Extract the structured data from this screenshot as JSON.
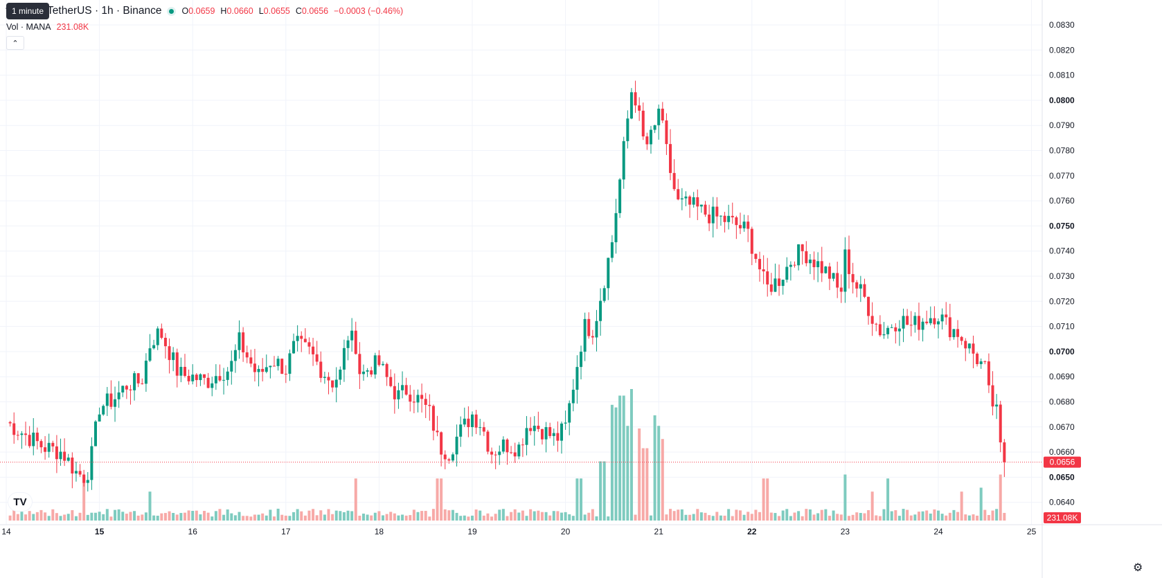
{
  "tooltip": "1 minute",
  "legend": {
    "title": "traland / TetherUS · 1h · Binance",
    "o_label": "O",
    "o": "0.0659",
    "h_label": "H",
    "h": "0.0660",
    "l_label": "L",
    "l": "0.0655",
    "c_label": "C",
    "c": "0.0656",
    "change": "−0.0003 (−0.46%)"
  },
  "volume": {
    "label": "Vol · MANA",
    "value": "231.08K"
  },
  "price_tag": "0.0656",
  "volume_tag": "231.08K",
  "colors": {
    "up": "#089981",
    "down": "#f23645",
    "up_vol": "#7ecbbf",
    "down_vol": "#f7a9a7",
    "grid": "#f0f3fa",
    "text": "#131722"
  },
  "icons": {
    "collapse": "chevron-up-icon",
    "logo": "tradingview-logo-icon",
    "settings": "gear-icon"
  },
  "chart_data": {
    "type": "candlestick",
    "symbol": "MANA/USDT",
    "interval": "1h",
    "ylim": [
      0.0635,
      0.0835
    ],
    "y_ticks": [
      {
        "label": "0.0830",
        "bold": false
      },
      {
        "label": "0.0820",
        "bold": false
      },
      {
        "label": "0.0810",
        "bold": false
      },
      {
        "label": "0.0800",
        "bold": true
      },
      {
        "label": "0.0790",
        "bold": false
      },
      {
        "label": "0.0780",
        "bold": false
      },
      {
        "label": "0.0770",
        "bold": false
      },
      {
        "label": "0.0760",
        "bold": false
      },
      {
        "label": "0.0750",
        "bold": true
      },
      {
        "label": "0.0740",
        "bold": false
      },
      {
        "label": "0.0730",
        "bold": false
      },
      {
        "label": "0.0720",
        "bold": false
      },
      {
        "label": "0.0710",
        "bold": false
      },
      {
        "label": "0.0700",
        "bold": true
      },
      {
        "label": "0.0690",
        "bold": false
      },
      {
        "label": "0.0680",
        "bold": false
      },
      {
        "label": "0.0670",
        "bold": false
      },
      {
        "label": "0.0660",
        "bold": false
      },
      {
        "label": "0.0650",
        "bold": true
      },
      {
        "label": "0.0640",
        "bold": false
      }
    ],
    "x_ticks": [
      {
        "label": "14",
        "day": 14,
        "bold": false
      },
      {
        "label": "15",
        "day": 15,
        "bold": true
      },
      {
        "label": "16",
        "day": 16,
        "bold": false
      },
      {
        "label": "17",
        "day": 17,
        "bold": false
      },
      {
        "label": "18",
        "day": 18,
        "bold": false
      },
      {
        "label": "19",
        "day": 19,
        "bold": false
      },
      {
        "label": "20",
        "day": 20,
        "bold": false
      },
      {
        "label": "21",
        "day": 21,
        "bold": false
      },
      {
        "label": "22",
        "day": 22,
        "bold": true
      },
      {
        "label": "23",
        "day": 23,
        "bold": false
      },
      {
        "label": "24",
        "day": 24,
        "bold": false
      },
      {
        "label": "25",
        "day": 25,
        "bold": false
      }
    ],
    "last_price": 0.0656,
    "anchors": [
      [
        14.0,
        0.0672
      ],
      [
        14.2,
        0.0667
      ],
      [
        14.4,
        0.0662
      ],
      [
        14.6,
        0.066
      ],
      [
        14.75,
        0.0652
      ],
      [
        14.85,
        0.065
      ],
      [
        14.9,
        0.0655
      ],
      [
        15.0,
        0.0678
      ],
      [
        15.15,
        0.0681
      ],
      [
        15.3,
        0.0687
      ],
      [
        15.45,
        0.0688
      ],
      [
        15.55,
        0.0704
      ],
      [
        15.65,
        0.0708
      ],
      [
        15.75,
        0.07
      ],
      [
        15.85,
        0.0691
      ],
      [
        16.0,
        0.069
      ],
      [
        16.15,
        0.0688
      ],
      [
        16.3,
        0.0692
      ],
      [
        16.4,
        0.0693
      ],
      [
        16.5,
        0.0704
      ],
      [
        16.6,
        0.0697
      ],
      [
        16.7,
        0.069
      ],
      [
        16.85,
        0.0697
      ],
      [
        17.0,
        0.0693
      ],
      [
        17.1,
        0.0703
      ],
      [
        17.25,
        0.07
      ],
      [
        17.4,
        0.0692
      ],
      [
        17.5,
        0.0688
      ],
      [
        17.6,
        0.0692
      ],
      [
        17.65,
        0.0707
      ],
      [
        17.75,
        0.0703
      ],
      [
        17.8,
        0.069
      ],
      [
        17.9,
        0.0694
      ],
      [
        18.0,
        0.0695
      ],
      [
        18.1,
        0.0688
      ],
      [
        18.2,
        0.0682
      ],
      [
        18.3,
        0.0685
      ],
      [
        18.45,
        0.068
      ],
      [
        18.55,
        0.0675
      ],
      [
        18.65,
        0.0662
      ],
      [
        18.75,
        0.066
      ],
      [
        18.85,
        0.0667
      ],
      [
        19.0,
        0.0675
      ],
      [
        19.1,
        0.0671
      ],
      [
        19.2,
        0.066
      ],
      [
        19.35,
        0.0663
      ],
      [
        19.5,
        0.0662
      ],
      [
        19.6,
        0.0672
      ],
      [
        19.75,
        0.0669
      ],
      [
        19.9,
        0.0665
      ],
      [
        20.0,
        0.067
      ],
      [
        20.1,
        0.069
      ],
      [
        20.2,
        0.071
      ],
      [
        20.3,
        0.0709
      ],
      [
        20.4,
        0.0726
      ],
      [
        20.5,
        0.0744
      ],
      [
        20.6,
        0.0773
      ],
      [
        20.65,
        0.0788
      ],
      [
        20.72,
        0.0807
      ],
      [
        20.78,
        0.0795
      ],
      [
        20.85,
        0.0781
      ],
      [
        20.95,
        0.0787
      ],
      [
        21.0,
        0.0797
      ],
      [
        21.1,
        0.0776
      ],
      [
        21.2,
        0.0759
      ],
      [
        21.35,
        0.0758
      ],
      [
        21.5,
        0.0755
      ],
      [
        21.65,
        0.0753
      ],
      [
        21.75,
        0.0752
      ],
      [
        21.85,
        0.075
      ],
      [
        21.95,
        0.0748
      ],
      [
        22.05,
        0.0737
      ],
      [
        22.15,
        0.0725
      ],
      [
        22.3,
        0.0729
      ],
      [
        22.45,
        0.0738
      ],
      [
        22.55,
        0.074
      ],
      [
        22.7,
        0.0735
      ],
      [
        22.85,
        0.073
      ],
      [
        22.95,
        0.0722
      ],
      [
        23.0,
        0.0738
      ],
      [
        23.1,
        0.0727
      ],
      [
        23.2,
        0.0722
      ],
      [
        23.3,
        0.0713
      ],
      [
        23.4,
        0.0707
      ],
      [
        23.5,
        0.0711
      ],
      [
        23.6,
        0.0713
      ],
      [
        23.7,
        0.071
      ],
      [
        23.8,
        0.0712
      ],
      [
        23.9,
        0.0714
      ],
      [
        24.0,
        0.0715
      ],
      [
        24.1,
        0.071
      ],
      [
        24.2,
        0.0708
      ],
      [
        24.3,
        0.0703
      ],
      [
        24.4,
        0.0698
      ],
      [
        24.5,
        0.0693
      ],
      [
        24.55,
        0.0681
      ],
      [
        24.62,
        0.0677
      ],
      [
        24.68,
        0.0657
      ],
      [
        24.72,
        0.0656
      ]
    ],
    "volume_spikes": [
      [
        14.85,
        0.35
      ],
      [
        15.55,
        0.22
      ],
      [
        17.75,
        0.32
      ],
      [
        18.65,
        0.32
      ],
      [
        20.15,
        0.32
      ],
      [
        20.4,
        0.45
      ],
      [
        20.5,
        0.88
      ],
      [
        20.55,
        0.86
      ],
      [
        20.6,
        0.95
      ],
      [
        20.65,
        0.72
      ],
      [
        20.7,
        1.0
      ],
      [
        20.72,
        0.8
      ],
      [
        20.78,
        0.7
      ],
      [
        20.85,
        0.55
      ],
      [
        20.95,
        0.8
      ],
      [
        21.0,
        0.72
      ],
      [
        21.05,
        0.62
      ],
      [
        22.15,
        0.32
      ],
      [
        23.0,
        0.35
      ],
      [
        23.3,
        0.22
      ],
      [
        23.45,
        0.32
      ],
      [
        24.25,
        0.22
      ],
      [
        24.45,
        0.25
      ],
      [
        24.68,
        0.35
      ]
    ]
  }
}
